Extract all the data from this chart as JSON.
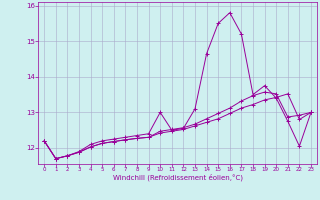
{
  "xlabel": "Windchill (Refroidissement éolien,°C)",
  "bg_color": "#cff0f0",
  "line_color": "#990099",
  "grid_color": "#aaaacc",
  "xlim": [
    -0.5,
    23.5
  ],
  "ylim": [
    11.55,
    16.1
  ],
  "yticks": [
    12,
    13,
    14,
    15,
    16
  ],
  "xticks": [
    0,
    1,
    2,
    3,
    4,
    5,
    6,
    7,
    8,
    9,
    10,
    11,
    12,
    13,
    14,
    15,
    16,
    17,
    18,
    19,
    20,
    21,
    22,
    23
  ],
  "s1_x": [
    0,
    1,
    2,
    3,
    4,
    5,
    6,
    7,
    8,
    9,
    10,
    11,
    12,
    13,
    14,
    15,
    16,
    17,
    18,
    19,
    20,
    21,
    22,
    23
  ],
  "s1_y": [
    12.2,
    11.7,
    11.78,
    11.9,
    12.1,
    12.2,
    12.25,
    12.3,
    12.35,
    12.4,
    13.0,
    12.5,
    12.55,
    13.1,
    14.65,
    15.5,
    15.8,
    15.2,
    13.5,
    13.75,
    13.4,
    12.75,
    12.05,
    13.0
  ],
  "s2_x": [
    0,
    1,
    2,
    3,
    4,
    5,
    6,
    7,
    8,
    9,
    10,
    11,
    12,
    13,
    14,
    15,
    16,
    17,
    18,
    19,
    20,
    21,
    22,
    23
  ],
  "s2_y": [
    12.2,
    11.7,
    11.78,
    11.88,
    12.03,
    12.13,
    12.18,
    12.23,
    12.27,
    12.3,
    12.42,
    12.47,
    12.52,
    12.62,
    12.72,
    12.82,
    12.97,
    13.12,
    13.22,
    13.35,
    13.42,
    13.52,
    12.8,
    13.0
  ],
  "s3_x": [
    0,
    1,
    2,
    3,
    4,
    5,
    6,
    7,
    8,
    9,
    10,
    11,
    12,
    13,
    14,
    15,
    16,
    17,
    18,
    19,
    20,
    21,
    22,
    23
  ],
  "s3_y": [
    12.2,
    11.7,
    11.78,
    11.88,
    12.03,
    12.13,
    12.18,
    12.23,
    12.27,
    12.3,
    12.47,
    12.52,
    12.57,
    12.67,
    12.82,
    12.97,
    13.12,
    13.32,
    13.47,
    13.57,
    13.52,
    12.87,
    12.92,
    13.0
  ],
  "marker": "+",
  "markersize": 3,
  "lw": 0.7
}
